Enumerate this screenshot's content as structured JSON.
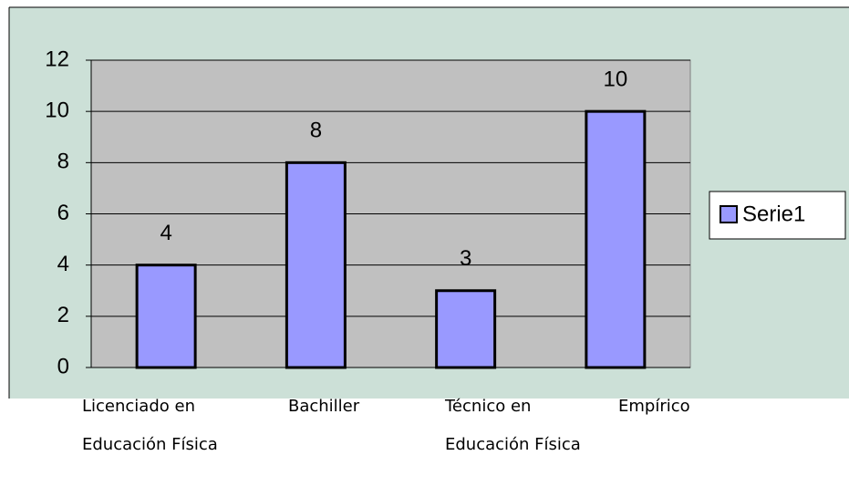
{
  "chart_data": {
    "type": "bar",
    "categories": [
      "Licenciado en Educación Física",
      "Bachiller",
      "Técnico en Educación Física",
      "Empírico"
    ],
    "series": [
      {
        "name": "Serie1",
        "color": "#9999ff",
        "values": [
          4,
          8,
          3,
          10
        ]
      }
    ],
    "ylim": [
      0,
      12
    ],
    "yticks": [
      0,
      2,
      4,
      6,
      8,
      10,
      12
    ],
    "grid": true,
    "legend": "right"
  }
}
